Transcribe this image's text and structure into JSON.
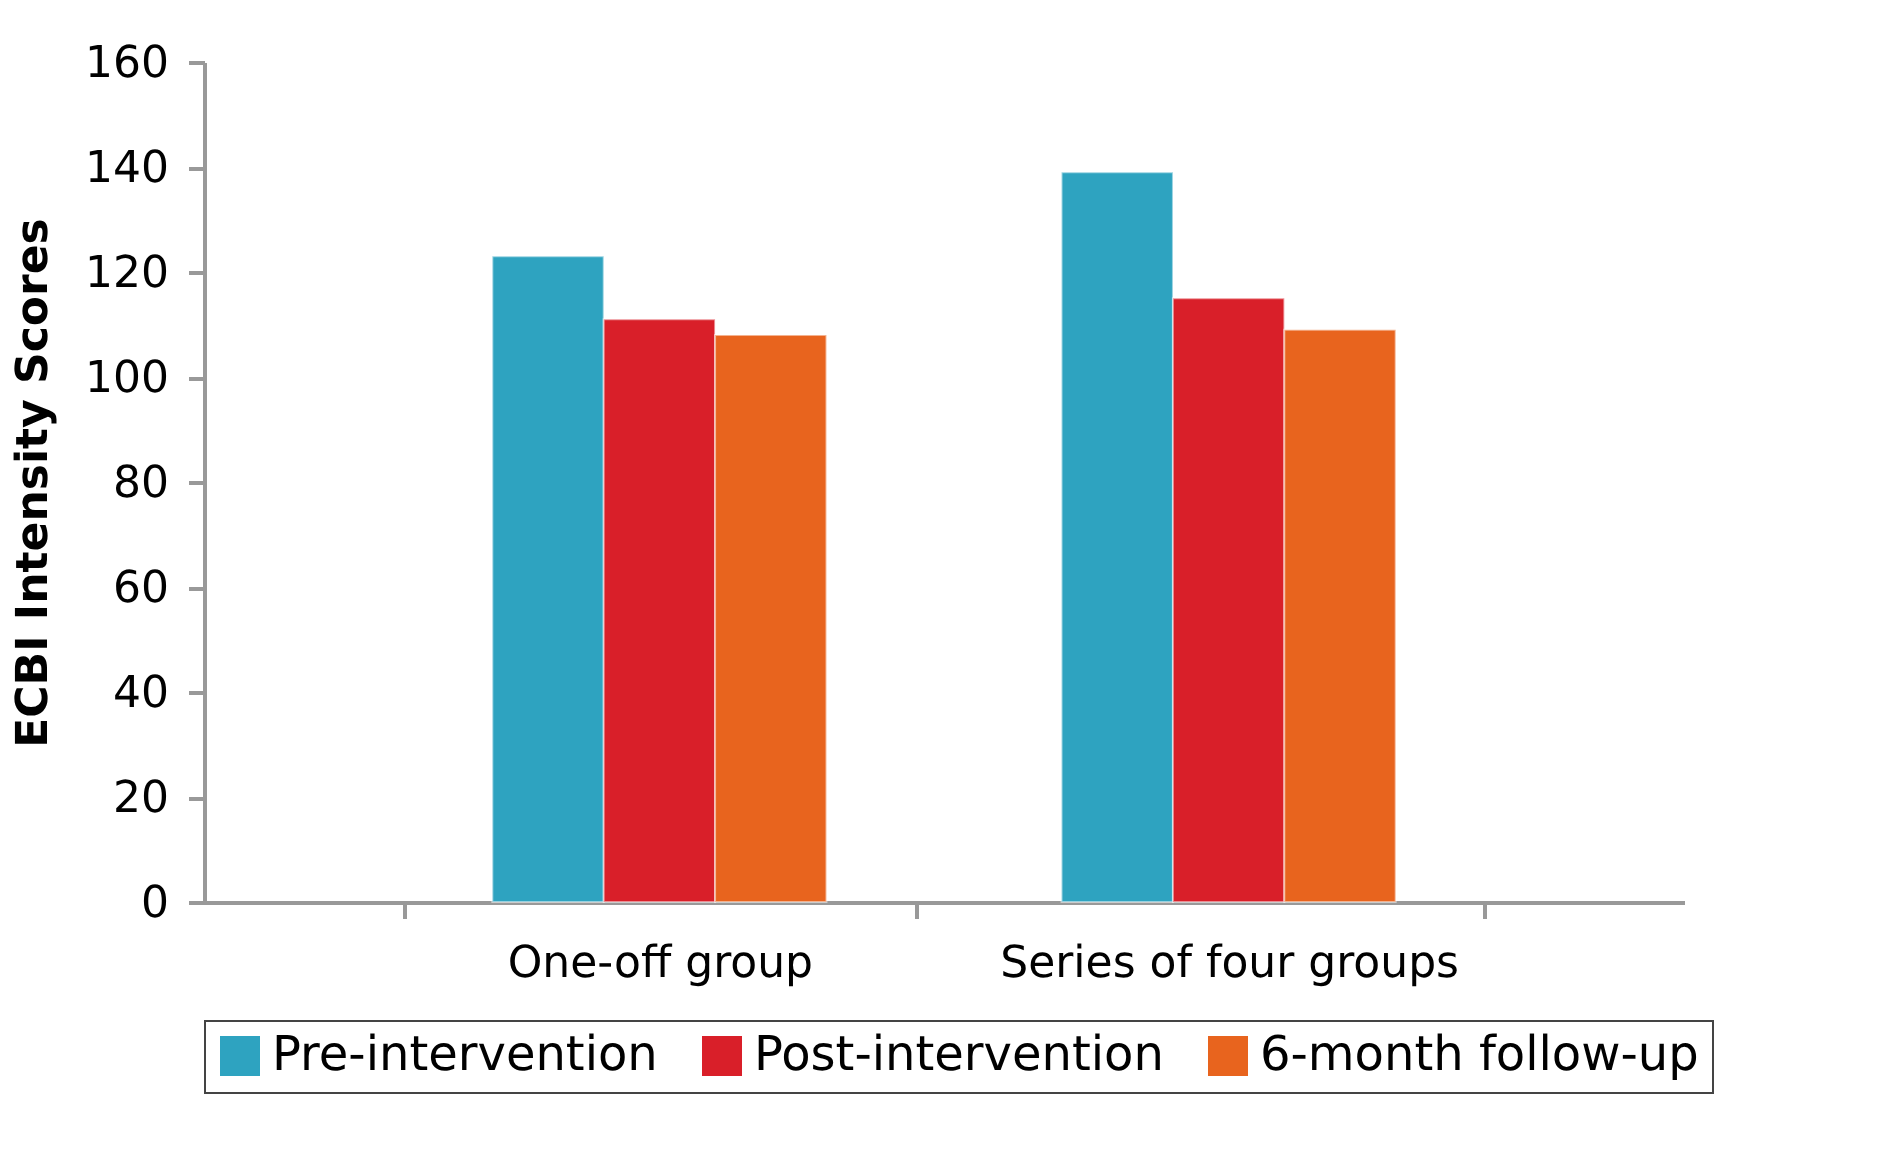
{
  "chart_data": {
    "type": "bar",
    "ylabel": "ECBI Intensity Scores",
    "categories": [
      "One-off group",
      "Series of four groups"
    ],
    "series": [
      {
        "name": "Pre-intervention",
        "color": "#2ea3c0",
        "values": [
          123,
          139
        ]
      },
      {
        "name": "Post-intervention",
        "color": "#d91f29",
        "values": [
          111,
          115
        ]
      },
      {
        "name": "6-month follow-up",
        "color": "#e8641e",
        "values": [
          108,
          109
        ]
      }
    ],
    "ylim": [
      0,
      160
    ],
    "yticks": [
      0,
      20,
      40,
      60,
      80,
      100,
      120,
      140,
      160
    ],
    "grid": false,
    "legend": "bottom"
  }
}
